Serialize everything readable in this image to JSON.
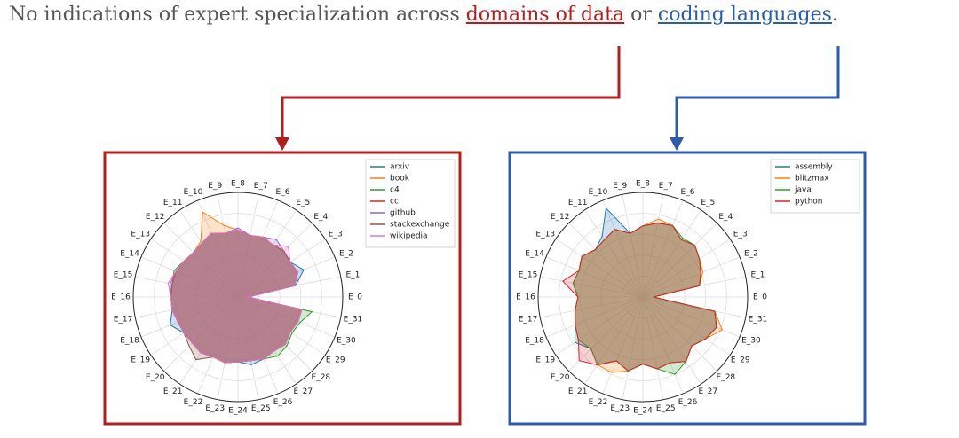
{
  "headline": {
    "before": "No indications of expert specialization across ",
    "link1": "domains of data",
    "middle": " or ",
    "link2": "coding languages",
    "after": "."
  },
  "chart_data": [
    {
      "type": "radar",
      "legend": "upper right",
      "frame_color": "#b51c1c",
      "rlim": [
        0,
        1
      ],
      "rgrid": [
        0.2,
        0.4,
        0.6,
        0.8
      ],
      "categories": [
        "E_0",
        "E_1",
        "E_2",
        "E_3",
        "E_4",
        "E_5",
        "E_6",
        "E_7",
        "E_8",
        "E_9",
        "E_10",
        "E_11",
        "E_12",
        "E_13",
        "E_14",
        "E_15",
        "E_16",
        "E_17",
        "E_18",
        "E_19",
        "E_20",
        "E_21",
        "E_22",
        "E_23",
        "E_24",
        "E_25",
        "E_26",
        "E_27",
        "E_28",
        "E_29",
        "E_30",
        "E_31"
      ],
      "series": [
        {
          "name": "arxiv",
          "color": "#1f77b4",
          "values": [
            0.08,
            0.56,
            0.68,
            0.6,
            0.62,
            0.6,
            0.62,
            0.6,
            0.64,
            0.62,
            0.66,
            0.62,
            0.6,
            0.62,
            0.64,
            0.64,
            0.64,
            0.64,
            0.7,
            0.62,
            0.62,
            0.64,
            0.62,
            0.64,
            0.62,
            0.66,
            0.64,
            0.62,
            0.64,
            0.6,
            0.62,
            0.62
          ]
        },
        {
          "name": "book",
          "color": "#ff7f0e",
          "values": [
            0.08,
            0.55,
            0.62,
            0.6,
            0.62,
            0.6,
            0.62,
            0.6,
            0.64,
            0.7,
            0.88,
            0.64,
            0.6,
            0.62,
            0.64,
            0.64,
            0.64,
            0.64,
            0.62,
            0.62,
            0.62,
            0.64,
            0.62,
            0.64,
            0.62,
            0.62,
            0.64,
            0.62,
            0.64,
            0.6,
            0.62,
            0.62
          ]
        },
        {
          "name": "c4",
          "color": "#2ca02c",
          "values": [
            0.08,
            0.55,
            0.62,
            0.6,
            0.62,
            0.6,
            0.62,
            0.6,
            0.64,
            0.62,
            0.66,
            0.62,
            0.6,
            0.62,
            0.66,
            0.64,
            0.64,
            0.64,
            0.62,
            0.62,
            0.62,
            0.64,
            0.62,
            0.64,
            0.62,
            0.62,
            0.64,
            0.68,
            0.66,
            0.62,
            0.64,
            0.72
          ]
        },
        {
          "name": "cc",
          "color": "#d62728",
          "values": [
            0.08,
            0.55,
            0.62,
            0.6,
            0.62,
            0.6,
            0.62,
            0.6,
            0.64,
            0.62,
            0.66,
            0.62,
            0.6,
            0.62,
            0.64,
            0.64,
            0.64,
            0.64,
            0.62,
            0.62,
            0.62,
            0.64,
            0.62,
            0.64,
            0.62,
            0.62,
            0.64,
            0.62,
            0.64,
            0.6,
            0.62,
            0.62
          ]
        },
        {
          "name": "github",
          "color": "#9467bd",
          "values": [
            0.1,
            0.55,
            0.62,
            0.6,
            0.62,
            0.66,
            0.62,
            0.6,
            0.66,
            0.62,
            0.66,
            0.62,
            0.6,
            0.62,
            0.64,
            0.66,
            0.64,
            0.64,
            0.62,
            0.62,
            0.62,
            0.64,
            0.62,
            0.64,
            0.62,
            0.62,
            0.64,
            0.62,
            0.64,
            0.6,
            0.62,
            0.62
          ]
        },
        {
          "name": "stackexchange",
          "color": "#8c564b",
          "values": [
            0.08,
            0.55,
            0.62,
            0.6,
            0.62,
            0.6,
            0.62,
            0.6,
            0.64,
            0.62,
            0.66,
            0.62,
            0.6,
            0.62,
            0.64,
            0.64,
            0.64,
            0.64,
            0.62,
            0.62,
            0.66,
            0.72,
            0.62,
            0.64,
            0.62,
            0.62,
            0.64,
            0.62,
            0.64,
            0.6,
            0.62,
            0.62
          ]
        },
        {
          "name": "wikipedia",
          "color": "#e377c2",
          "values": [
            0.08,
            0.55,
            0.62,
            0.6,
            0.68,
            0.6,
            0.62,
            0.6,
            0.64,
            0.62,
            0.66,
            0.62,
            0.6,
            0.62,
            0.64,
            0.68,
            0.64,
            0.64,
            0.62,
            0.62,
            0.62,
            0.64,
            0.62,
            0.64,
            0.62,
            0.62,
            0.64,
            0.62,
            0.64,
            0.6,
            0.62,
            0.62
          ]
        }
      ]
    },
    {
      "type": "radar",
      "legend": "upper right",
      "frame_color": "#2a5db0",
      "rlim": [
        0,
        1
      ],
      "rgrid": [
        0.2,
        0.4,
        0.6,
        0.8
      ],
      "categories": [
        "E_0",
        "E_1",
        "E_2",
        "E_3",
        "E_4",
        "E_5",
        "E_6",
        "E_7",
        "E_8",
        "E_9",
        "E_10",
        "E_11",
        "E_12",
        "E_13",
        "E_14",
        "E_15",
        "E_16",
        "E_17",
        "E_18",
        "E_19",
        "E_20",
        "E_21",
        "E_22",
        "E_23",
        "E_24",
        "E_25",
        "E_26",
        "E_27",
        "E_28",
        "E_29",
        "E_30",
        "E_31"
      ],
      "series": [
        {
          "name": "assembly",
          "color": "#1f77b4",
          "values": [
            0.1,
            0.55,
            0.6,
            0.65,
            0.7,
            0.66,
            0.74,
            0.72,
            0.68,
            0.62,
            0.92,
            0.7,
            0.64,
            0.7,
            0.66,
            0.68,
            0.62,
            0.66,
            0.7,
            0.78,
            0.7,
            0.78,
            0.66,
            0.72,
            0.64,
            0.7,
            0.68,
            0.74,
            0.66,
            0.72,
            0.76,
            0.7
          ]
        },
        {
          "name": "blitzmax",
          "color": "#ff7f0e",
          "values": [
            0.1,
            0.55,
            0.62,
            0.65,
            0.7,
            0.66,
            0.74,
            0.76,
            0.68,
            0.62,
            0.7,
            0.66,
            0.64,
            0.7,
            0.66,
            0.68,
            0.62,
            0.66,
            0.7,
            0.74,
            0.7,
            0.78,
            0.78,
            0.72,
            0.64,
            0.7,
            0.68,
            0.74,
            0.66,
            0.72,
            0.82,
            0.7
          ]
        },
        {
          "name": "java",
          "color": "#2ca02c",
          "values": [
            0.1,
            0.55,
            0.6,
            0.65,
            0.7,
            0.68,
            0.74,
            0.72,
            0.68,
            0.62,
            0.7,
            0.66,
            0.64,
            0.7,
            0.66,
            0.68,
            0.62,
            0.66,
            0.7,
            0.74,
            0.7,
            0.78,
            0.66,
            0.72,
            0.64,
            0.7,
            0.8,
            0.74,
            0.66,
            0.72,
            0.76,
            0.7
          ]
        },
        {
          "name": "python",
          "color": "#d62728",
          "values": [
            0.1,
            0.55,
            0.6,
            0.65,
            0.7,
            0.66,
            0.74,
            0.72,
            0.68,
            0.62,
            0.7,
            0.66,
            0.64,
            0.7,
            0.66,
            0.78,
            0.62,
            0.66,
            0.7,
            0.74,
            0.86,
            0.78,
            0.66,
            0.72,
            0.64,
            0.7,
            0.68,
            0.74,
            0.66,
            0.72,
            0.76,
            0.7
          ]
        }
      ]
    }
  ]
}
